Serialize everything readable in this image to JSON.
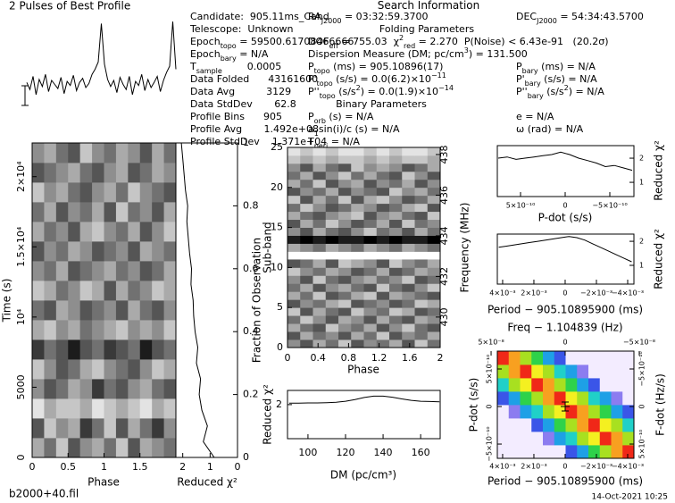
{
  "title": "2 Pulses of Best Profile",
  "info": [
    [
      "Candidate:  905.11ms_Cand"
    ],
    [
      "Telescope:  Unknown"
    ],
    [
      "Epoch",
      {
        "sub": "topo"
      },
      " = 59500.61708466666"
    ],
    [
      "Epoch",
      {
        "sub": "bary"
      },
      " = N/A"
    ],
    [
      "T",
      {
        "sub": "sample"
      },
      "        0.0005"
    ],
    [
      "Data Folded      43161600"
    ],
    [
      "Data Avg          3129"
    ],
    [
      "Data StdDev       62.8"
    ],
    [
      "Profile Bins      905"
    ],
    [
      "Profile Avg       1.492e+08"
    ],
    [
      "Profile StdDev    1.371e+04"
    ],
    [
      "Search Information"
    ],
    [
      "RA",
      {
        "sub": "J2000"
      },
      " = 03:32:59.3700"
    ],
    [
      "DEC",
      {
        "sub": "J2000"
      },
      " = 54:34:43.5700"
    ],
    [
      "Folding Parameters"
    ],
    [
      "DOF",
      {
        "sub": "eff"
      },
      " = 755.03  χ",
      {
        "sup": "2"
      },
      {
        "sub": "red"
      },
      " = 2.270  P(Noise) < 6.43e-91   (20.2σ)"
    ],
    [
      "Dispersion Measure (DM; pc/cm",
      {
        "sup": "3"
      },
      ") = 131.500"
    ],
    [
      "P",
      {
        "sub": "topo"
      },
      " (ms) = 905.10896(17)"
    ],
    [
      "P",
      {
        "sub": "bary"
      },
      " (ms) = N/A"
    ],
    [
      "P'",
      {
        "sub": "topo"
      },
      " (s/s) = 0.0(6.2)×10",
      {
        "sup": "−11"
      }
    ],
    [
      "P'",
      {
        "sub": "bary"
      },
      " (s/s) = N/A"
    ],
    [
      "P''",
      {
        "sub": "topo"
      },
      " (s/s",
      {
        "sup": "2"
      },
      ") = 0.0(1.9)×10",
      {
        "sup": "−14"
      }
    ],
    [
      "P''",
      {
        "sub": "bary"
      },
      " (s/s",
      {
        "sup": "2"
      },
      ") = N/A"
    ],
    [
      "Binary Parameters"
    ],
    [
      "P",
      {
        "sub": "orb"
      },
      " (s) = N/A"
    ],
    [
      "e = N/A"
    ],
    [
      "a",
      {
        "sub": "1"
      },
      "sin(i)/c (s) = N/A"
    ],
    [
      "ω (rad) = N/A"
    ],
    [
      "T",
      {
        "sub": "peri"
      },
      " = N/A"
    ]
  ],
  "footer": {
    "file": "b2000+40.fil",
    "date": "14-Oct-2021 10:25"
  },
  "chart_data": [
    {
      "type": "line",
      "xlim": [
        0,
        2
      ],
      "ylim": [
        0,
        1.1
      ],
      "color": "#000000",
      "values": [
        0.42,
        0.35,
        0.48,
        0.3,
        0.45,
        0.38,
        0.5,
        0.33,
        0.44,
        0.4,
        0.36,
        0.47,
        0.31,
        0.43,
        0.39,
        0.49,
        0.34,
        0.42,
        0.46,
        0.37,
        0.41,
        0.5,
        0.55,
        0.62,
        1.0,
        0.6,
        0.45,
        0.38,
        0.44,
        0.32,
        0.47,
        0.4,
        0.35,
        0.48,
        0.3,
        0.43,
        0.39,
        0.5,
        0.34,
        0.45,
        0.37,
        0.42,
        0.48,
        0.33,
        0.44,
        0.52,
        0.58,
        1.02,
        0.55
      ]
    },
    {
      "type": "heatmap",
      "xlabel": "Phase",
      "ylabel": "Time (s)",
      "colormap": "gray",
      "xlim": [
        0,
        2
      ],
      "xticks": [
        0,
        0.5,
        1,
        1.5
      ],
      "ylim": [
        0,
        22400
      ],
      "yticks": [
        0,
        5000,
        {
          "value": 10000,
          "label": "10⁴"
        },
        {
          "value": 15000,
          "label": "1.5×10⁴"
        },
        {
          "value": 20000,
          "label": "2×10⁴"
        }
      ],
      "z": [
        [
          3,
          5,
          2,
          6,
          4,
          3,
          5,
          2,
          6,
          3,
          4,
          5
        ],
        [
          6,
          2,
          4,
          3,
          7,
          5,
          2,
          6,
          3,
          5,
          7,
          4
        ],
        [
          1,
          3,
          2,
          2,
          3,
          1,
          2,
          3,
          2,
          1,
          3,
          2
        ],
        [
          4,
          6,
          5,
          3,
          4,
          7,
          5,
          6,
          4,
          3,
          5,
          6
        ],
        [
          2,
          4,
          6,
          5,
          3,
          2,
          4,
          5,
          6,
          4,
          2,
          3
        ],
        [
          7,
          5,
          6,
          8,
          6,
          5,
          7,
          6,
          5,
          8,
          6,
          5
        ],
        [
          3,
          2,
          4,
          3,
          5,
          4,
          3,
          2,
          4,
          3,
          4,
          2
        ],
        [
          5,
          6,
          3,
          4,
          6,
          5,
          4,
          6,
          3,
          5,
          6,
          4
        ],
        [
          2,
          3,
          5,
          4,
          2,
          3,
          6,
          3,
          5,
          4,
          2,
          3
        ],
        [
          4,
          5,
          3,
          6,
          5,
          4,
          3,
          5,
          4,
          6,
          5,
          3
        ],
        [
          6,
          4,
          5,
          3,
          4,
          6,
          5,
          4,
          6,
          3,
          4,
          5
        ],
        [
          3,
          5,
          4,
          6,
          3,
          2,
          4,
          5,
          3,
          6,
          4,
          2
        ],
        [
          5,
          3,
          6,
          4,
          5,
          3,
          6,
          2,
          5,
          4,
          6,
          3
        ],
        [
          2,
          4,
          3,
          5,
          6,
          4,
          3,
          5,
          2,
          4,
          5,
          6
        ],
        [
          6,
          5,
          4,
          3,
          5,
          6,
          4,
          3,
          6,
          5,
          3,
          4
        ],
        [
          4,
          3,
          5,
          6,
          2,
          4,
          5,
          3,
          4,
          6,
          3,
          5
        ]
      ]
    },
    {
      "type": "line",
      "orientation": "vertical",
      "xlabel": "Reduced χ²",
      "ylabel": "Fraction of Observation",
      "color": "#000000",
      "xlim": [
        2.25,
        0
      ],
      "xticks": [
        2,
        1,
        0
      ],
      "ylim": [
        0,
        1
      ],
      "yticks": [
        0,
        0.2,
        0.4,
        0.6,
        0.8,
        1
      ],
      "values": [
        0.85,
        1.25,
        1.1,
        1.3,
        1.4,
        1.35,
        1.5,
        1.45,
        1.55,
        1.6,
        1.62,
        1.7,
        1.68,
        1.75,
        1.8,
        1.85,
        1.82,
        1.9,
        1.95,
        2.0,
        2.05
      ]
    },
    {
      "type": "heatmap",
      "xlabel": "Phase",
      "ylabel": "Sub-band",
      "y2label": "Frequency (MHz)",
      "colormap": "gray",
      "xlim": [
        0,
        2
      ],
      "xticks": [
        0,
        0.4,
        0.8,
        1.2,
        1.6,
        2
      ],
      "ylim": [
        0,
        25
      ],
      "yticks": [
        0,
        5,
        10,
        15,
        20,
        25
      ],
      "y2lim": [
        428.5,
        438.35
      ],
      "y2ticks": [
        430,
        432,
        434,
        436,
        438
      ],
      "z": [
        [
          4,
          6,
          3,
          5,
          2,
          6,
          4,
          5,
          3,
          6,
          2,
          5
        ],
        [
          6,
          3,
          5,
          4,
          6,
          3,
          5,
          2,
          6,
          4,
          5,
          3
        ],
        [
          3,
          5,
          6,
          2,
          4,
          5,
          3,
          6,
          4,
          2,
          5,
          6
        ],
        [
          5,
          2,
          4,
          6,
          3,
          4,
          6,
          3,
          5,
          6,
          3,
          4
        ],
        [
          2,
          6,
          3,
          5,
          6,
          2,
          4,
          5,
          2,
          3,
          6,
          5
        ],
        [
          6,
          4,
          5,
          3,
          2,
          6,
          5,
          4,
          6,
          5,
          2,
          3
        ],
        [
          3,
          5,
          2,
          6,
          5,
          3,
          2,
          6,
          3,
          4,
          5,
          6
        ],
        [
          5,
          3,
          6,
          4,
          3,
          5,
          6,
          2,
          5,
          6,
          4,
          2
        ],
        [
          4,
          6,
          2,
          5,
          6,
          4,
          3,
          5,
          4,
          2,
          6,
          5
        ],
        [
          2,
          4,
          5,
          3,
          4,
          6,
          5,
          3,
          6,
          5,
          3,
          4
        ],
        [
          6,
          5,
          3,
          6,
          2,
          3,
          4,
          6,
          2,
          4,
          5,
          3
        ],
        [
          null,
          null,
          null,
          null,
          null,
          null,
          null,
          null,
          null,
          null,
          null,
          null
        ],
        [
          3,
          4,
          5,
          3,
          4,
          5,
          3,
          4,
          5,
          3,
          4,
          5
        ],
        [
          8,
          9,
          8,
          9,
          8,
          8,
          9,
          8,
          9,
          8,
          8,
          9
        ],
        [
          4,
          6,
          3,
          5,
          6,
          4,
          2,
          5,
          4,
          6,
          3,
          5
        ],
        [
          6,
          3,
          5,
          2,
          4,
          6,
          5,
          3,
          6,
          2,
          5,
          4
        ],
        [
          3,
          5,
          6,
          4,
          3,
          2,
          6,
          4,
          3,
          5,
          6,
          2
        ],
        [
          5,
          2,
          4,
          6,
          5,
          3,
          4,
          6,
          5,
          3,
          2,
          6
        ],
        [
          2,
          6,
          3,
          5,
          2,
          6,
          3,
          2,
          4,
          6,
          5,
          3
        ],
        [
          6,
          4,
          5,
          3,
          6,
          4,
          5,
          6,
          2,
          4,
          3,
          5
        ],
        [
          3,
          5,
          2,
          6,
          4,
          3,
          6,
          4,
          5,
          3,
          6,
          4
        ],
        [
          5,
          3,
          6,
          4,
          2,
          5,
          3,
          5,
          6,
          2,
          4,
          6
        ],
        [
          4,
          6,
          3,
          5,
          6,
          2,
          4,
          3,
          4,
          6,
          5,
          3
        ],
        [
          2,
          3,
          2,
          3,
          2,
          2,
          3,
          2,
          3,
          2,
          2,
          3
        ],
        [
          1,
          2,
          1,
          2,
          1,
          1,
          2,
          1,
          2,
          1,
          1,
          2
        ]
      ]
    },
    {
      "type": "line",
      "xlabel": "DM (pc/cm³)",
      "ylabel": "Reduced χ²",
      "color": "#000000",
      "xlim": [
        89.1,
        170.4
      ],
      "xticks": [
        100,
        120,
        140,
        160
      ],
      "ylim": [
        0.8,
        2.5
      ],
      "yticks": [
        2
      ],
      "x": [
        90,
        95,
        100,
        105,
        110,
        115,
        120,
        125,
        130,
        135,
        140,
        145,
        150,
        155,
        160,
        165,
        170
      ],
      "values": [
        2.05,
        2.05,
        2.06,
        2.06,
        2.07,
        2.08,
        2.12,
        2.18,
        2.25,
        2.3,
        2.3,
        2.26,
        2.2,
        2.15,
        2.12,
        2.11,
        2.1
      ]
    },
    {
      "type": "line",
      "xlabel": "P-dot (s/s)",
      "ylabel": "Reduced χ²",
      "color": "#000000",
      "xlim": [
        7.6e-10,
        -7.7e-10
      ],
      "xticks": [
        {
          "value": 5e-10,
          "label": "5×10⁻¹⁰"
        },
        0,
        {
          "value": -5e-10,
          "label": "−5×10⁻¹⁰"
        }
      ],
      "ylim": [
        0.41,
        2.52
      ],
      "yticks": [
        1,
        2
      ],
      "x": [
        7.5e-10,
        6.5e-10,
        5.5e-10,
        4.5e-10,
        3.5e-10,
        2.5e-10,
        1.5e-10,
        5e-11,
        -5e-11,
        -1.5e-10,
        -2.5e-10,
        -3.5e-10,
        -4.5e-10,
        -5.5e-10,
        -6.5e-10,
        -7.5e-10
      ],
      "values": [
        2.0,
        2.05,
        1.95,
        2.0,
        2.05,
        2.1,
        2.15,
        2.25,
        2.15,
        2.0,
        1.9,
        1.8,
        1.65,
        1.7,
        1.6,
        1.5
      ]
    },
    {
      "type": "line",
      "xlabel": "Period − 905.10895900 (ms)",
      "ylabel": "Reduced χ²",
      "color": "#000000",
      "xlim": [
        0.00434,
        -0.0044
      ],
      "xticks": [
        {
          "value": 0.004,
          "label": "4×10⁻³"
        },
        {
          "value": 0.002,
          "label": "2×10⁻³"
        },
        0,
        {
          "value": -0.002,
          "label": "−2×10⁻³"
        },
        {
          "value": -0.004,
          "label": "−4×10⁻³"
        }
      ],
      "ylim": [
        0.22,
        2.3
      ],
      "yticks": [
        1,
        2
      ],
      "x": [
        0.00425,
        0.00375,
        0.00325,
        0.00275,
        0.00225,
        0.00175,
        0.00125,
        0.00075,
        0.00025,
        -0.00025,
        -0.00075,
        -0.00125,
        -0.00175,
        -0.00225,
        -0.00275,
        -0.00325,
        -0.00375,
        -0.00425
      ],
      "values": [
        1.75,
        1.8,
        1.85,
        1.9,
        1.95,
        2.0,
        2.05,
        2.1,
        2.15,
        2.2,
        2.15,
        2.05,
        1.9,
        1.75,
        1.6,
        1.45,
        1.3,
        1.15
      ]
    },
    {
      "type": "heatmap",
      "xlabel": "Period − 905.10895900 (ms)",
      "ylabel": "P-dot (s/s)",
      "x2label": "Freq − 1.104839 (Hz)",
      "y2label": "F-dot (Hz/s)",
      "colormap": "rainbow",
      "xlim": [
        0.00434,
        -0.0044
      ],
      "xticks": [
        {
          "value": 0.004,
          "label": "4×10⁻³"
        },
        {
          "value": 0.002,
          "label": "2×10⁻³"
        },
        0,
        {
          "value": -0.002,
          "label": "−2×10⁻³"
        },
        {
          "value": -0.004,
          "label": "−4×10⁻³"
        }
      ],
      "ylim": [
        -6.9e-10,
        7.38e-10
      ],
      "yticks": [
        {
          "value": -5e-10,
          "label": "−5×10⁻¹⁰"
        },
        0,
        {
          "value": 5e-10,
          "label": "5×10⁻¹⁰"
        }
      ],
      "x2lim": [
        4.58e-08,
        -4.64e-08
      ],
      "x2ticks": [
        {
          "value": 5e-08,
          "label": "5×10⁻⁸"
        },
        0,
        {
          "value": -5e-08,
          "label": "−5×10⁻⁸"
        }
      ],
      "y2lim": [
        6.9e-10,
        -7.38e-10
      ],
      "y2ticks": [
        {
          "value": 5e-10,
          "label": "5×10⁻¹⁰"
        },
        0,
        {
          "value": -5e-10,
          "label": "−5×10⁻¹⁰"
        }
      ],
      "z": [
        [
          0,
          0,
          0,
          0,
          0,
          0,
          2,
          3,
          5,
          6,
          8,
          9
        ],
        [
          0,
          0,
          0,
          0,
          1,
          3,
          4,
          6,
          7,
          9,
          8,
          6
        ],
        [
          0,
          0,
          0,
          2,
          3,
          5,
          6,
          8,
          9,
          7,
          6,
          4
        ],
        [
          0,
          1,
          3,
          4,
          6,
          7,
          9,
          8,
          6,
          5,
          3,
          2
        ],
        [
          2,
          3,
          5,
          6,
          8,
          9,
          7,
          6,
          4,
          3,
          1,
          0
        ],
        [
          4,
          6,
          7,
          9,
          8,
          6,
          5,
          3,
          2,
          0,
          0,
          0
        ],
        [
          6,
          8,
          9,
          7,
          6,
          4,
          3,
          1,
          0,
          0,
          0,
          0
        ],
        [
          9,
          8,
          6,
          5,
          3,
          2,
          0,
          0,
          0,
          0,
          0,
          0
        ]
      ]
    }
  ]
}
